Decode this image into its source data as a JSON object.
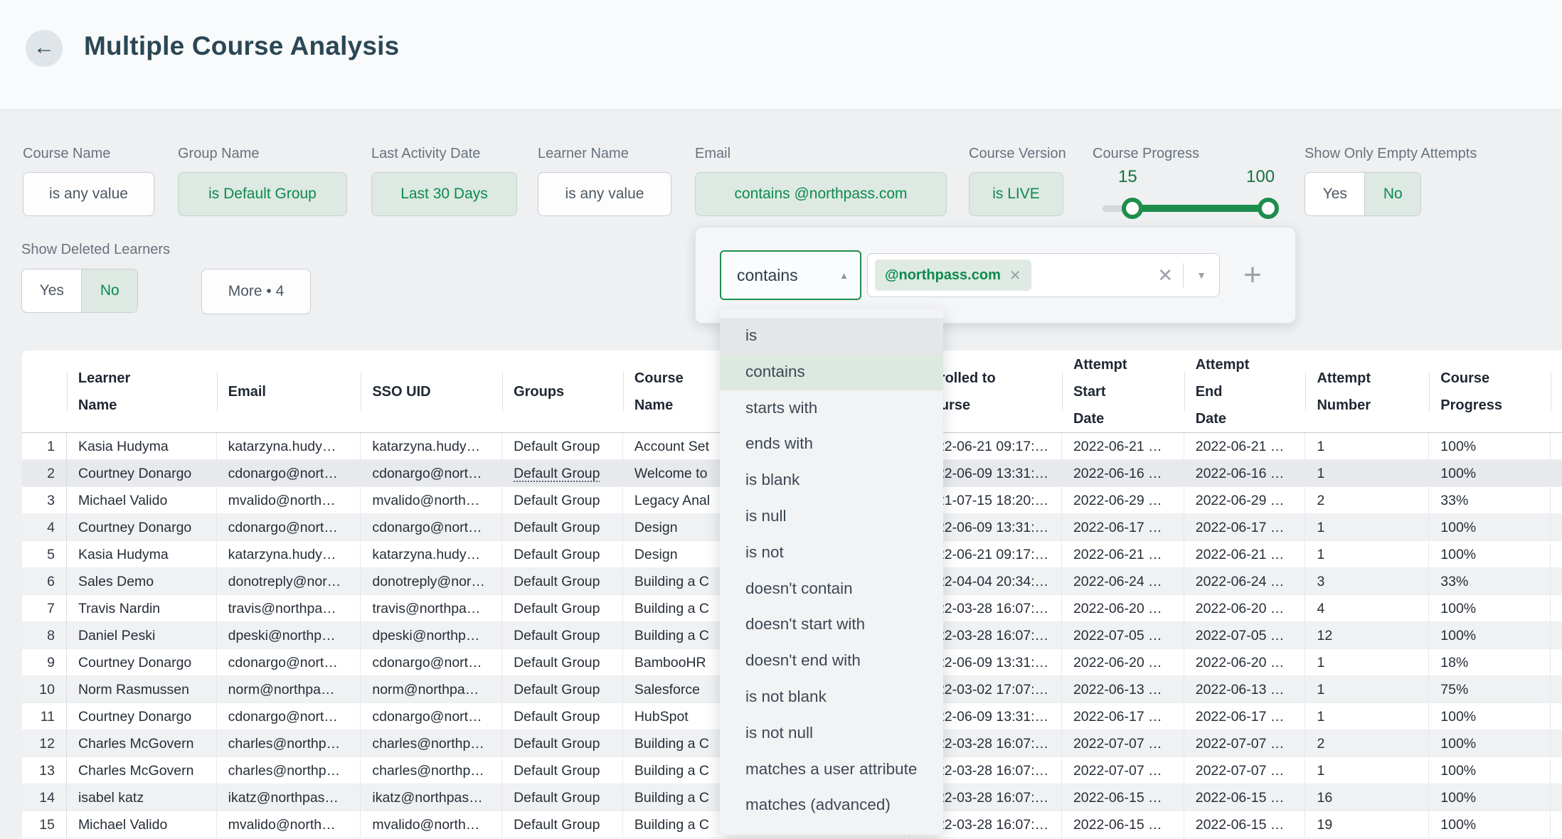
{
  "header": {
    "title": "Multiple Course Analysis",
    "back_icon": "arrow-left"
  },
  "filters": [
    {
      "label": "Course Name",
      "value": "is any value",
      "active": false
    },
    {
      "label": "Group Name",
      "value": "is Default Group",
      "active": true
    },
    {
      "label": "Last Activity Date",
      "value": "Last 30 Days",
      "active": true
    },
    {
      "label": "Learner Name",
      "value": "is any value",
      "active": false
    },
    {
      "label": "Email",
      "value": "contains @northpass.com",
      "active": true
    },
    {
      "label": "Course Version",
      "value": "is LIVE",
      "active": true
    }
  ],
  "progress_filter": {
    "label": "Course Progress",
    "min_label": "15",
    "max_label": "100"
  },
  "toggles": {
    "show_only_empty_attempts": {
      "label": "Show Only Empty Attempts",
      "yes": "Yes",
      "no": "No",
      "selected": "No"
    },
    "show_deleted_learners": {
      "label": "Show Deleted Learners",
      "yes": "Yes",
      "no": "No",
      "selected": "No"
    }
  },
  "more_button": {
    "label": "More • 4"
  },
  "filter_editor": {
    "operator": "contains",
    "token": "@northpass.com",
    "token_remove_icon": "close-icon",
    "clear_icon": "close-icon",
    "expand_icon": "chevron-down-icon",
    "add_icon": "plus-icon"
  },
  "operator_menu": {
    "items": [
      "is",
      "contains",
      "starts with",
      "ends with",
      "is blank",
      "is null",
      "is not",
      "doesn't contain",
      "doesn't start with",
      "doesn't end with",
      "is not blank",
      "is not null",
      "matches a user attribute",
      "matches (advanced)"
    ],
    "selected_item": "contains",
    "hovered_item": "is"
  },
  "table": {
    "columns": [
      {
        "label": ""
      },
      {
        "label": "Learner Name"
      },
      {
        "label": "Email"
      },
      {
        "label": "SSO UID"
      },
      {
        "label": "Groups"
      },
      {
        "label": "Course Name"
      },
      {
        "label": "Enrolled to Course"
      },
      {
        "label": "Attempt Start Date"
      },
      {
        "label": "Attempt End Date"
      },
      {
        "label": "Attempt Number"
      },
      {
        "label": "Course Progress"
      },
      {
        "label": ""
      }
    ],
    "rows": [
      {
        "num": "1",
        "learner": "Kasia Hudyma",
        "email": "katarzyna.hudy…",
        "sso": "katarzyna.hudy…",
        "groups": "Default Group",
        "course": "Account Set",
        "enrolled": "2022-06-21 09:17:…",
        "start": "2022-06-21 …",
        "end": "2022-06-21 …",
        "attempt": "1",
        "progress": "100%",
        "hovered": false
      },
      {
        "num": "2",
        "learner": "Courtney Donargo",
        "email": "cdonargo@nort…",
        "sso": "cdonargo@nort…",
        "groups": "Default Group",
        "course": "Welcome to",
        "enrolled": "2022-06-09 13:31:…",
        "start": "2022-06-16 …",
        "end": "2022-06-16 …",
        "attempt": "1",
        "progress": "100%",
        "hovered": true
      },
      {
        "num": "3",
        "learner": "Michael Valido",
        "email": "mvalido@north…",
        "sso": "mvalido@north…",
        "groups": "Default Group",
        "course": "Legacy Anal",
        "enrolled": "2021-07-15 18:20:…",
        "start": "2022-06-29 …",
        "end": "2022-06-29 …",
        "attempt": "2",
        "progress": "33%",
        "hovered": false
      },
      {
        "num": "4",
        "learner": "Courtney Donargo",
        "email": "cdonargo@nort…",
        "sso": "cdonargo@nort…",
        "groups": "Default Group",
        "course": "Design",
        "enrolled": "2022-06-09 13:31:…",
        "start": "2022-06-17 …",
        "end": "2022-06-17 …",
        "attempt": "1",
        "progress": "100%",
        "hovered": false
      },
      {
        "num": "5",
        "learner": "Kasia Hudyma",
        "email": "katarzyna.hudy…",
        "sso": "katarzyna.hudy…",
        "groups": "Default Group",
        "course": "Design",
        "enrolled": "2022-06-21 09:17:…",
        "start": "2022-06-21 …",
        "end": "2022-06-21 …",
        "attempt": "1",
        "progress": "100%",
        "hovered": false
      },
      {
        "num": "6",
        "learner": "Sales Demo",
        "email": "donotreply@nor…",
        "sso": "donotreply@nor…",
        "groups": "Default Group",
        "course": "Building a C",
        "enrolled": "2022-04-04 20:34:…",
        "start": "2022-06-24 …",
        "end": "2022-06-24 …",
        "attempt": "3",
        "progress": "33%",
        "hovered": false
      },
      {
        "num": "7",
        "learner": "Travis Nardin",
        "email": "travis@northpa…",
        "sso": "travis@northpa…",
        "groups": "Default Group",
        "course": "Building a C",
        "enrolled": "2022-03-28 16:07:…",
        "start": "2022-06-20 …",
        "end": "2022-06-20 …",
        "attempt": "4",
        "progress": "100%",
        "hovered": false
      },
      {
        "num": "8",
        "learner": "Daniel Peski",
        "email": "dpeski@northp…",
        "sso": "dpeski@northp…",
        "groups": "Default Group",
        "course": "Building a C",
        "enrolled": "2022-03-28 16:07:…",
        "start": "2022-07-05 …",
        "end": "2022-07-05 …",
        "attempt": "12",
        "progress": "100%",
        "hovered": false
      },
      {
        "num": "9",
        "learner": "Courtney Donargo",
        "email": "cdonargo@nort…",
        "sso": "cdonargo@nort…",
        "groups": "Default Group",
        "course": "BambooHR",
        "enrolled": "2022-06-09 13:31:…",
        "start": "2022-06-20 …",
        "end": "2022-06-20 …",
        "attempt": "1",
        "progress": "18%",
        "hovered": false
      },
      {
        "num": "10",
        "learner": "Norm Rasmussen",
        "email": "norm@northpa…",
        "sso": "norm@northpa…",
        "groups": "Default Group",
        "course": "Salesforce",
        "enrolled": "2022-03-02 17:07:…",
        "start": "2022-06-13 …",
        "end": "2022-06-13 …",
        "attempt": "1",
        "progress": "75%",
        "hovered": false
      },
      {
        "num": "11",
        "learner": "Courtney Donargo",
        "email": "cdonargo@nort…",
        "sso": "cdonargo@nort…",
        "groups": "Default Group",
        "course": "HubSpot",
        "enrolled": "2022-06-09 13:31:…",
        "start": "2022-06-17 …",
        "end": "2022-06-17 …",
        "attempt": "1",
        "progress": "100%",
        "hovered": false
      },
      {
        "num": "12",
        "learner": "Charles McGovern",
        "email": "charles@northp…",
        "sso": "charles@northp…",
        "groups": "Default Group",
        "course": "Building a C",
        "enrolled": "2022-03-28 16:07:…",
        "start": "2022-07-07 …",
        "end": "2022-07-07 …",
        "attempt": "2",
        "progress": "100%",
        "hovered": false
      },
      {
        "num": "13",
        "learner": "Charles McGovern",
        "email": "charles@northp…",
        "sso": "charles@northp…",
        "groups": "Default Group",
        "course": "Building a C",
        "enrolled": "2022-03-28 16:07:…",
        "start": "2022-07-07 …",
        "end": "2022-07-07 …",
        "attempt": "1",
        "progress": "100%",
        "hovered": false
      },
      {
        "num": "14",
        "learner": "isabel katz",
        "email": "ikatz@northpas…",
        "sso": "ikatz@northpas…",
        "groups": "Default Group",
        "course": "Building a C",
        "enrolled": "2022-03-28 16:07:…",
        "start": "2022-06-15 …",
        "end": "2022-06-15 …",
        "attempt": "16",
        "progress": "100%",
        "hovered": false
      },
      {
        "num": "15",
        "learner": "Michael Valido",
        "email": "mvalido@north…",
        "sso": "mvalido@north…",
        "groups": "Default Group",
        "course": "Building a C",
        "enrolled": "2022-03-28 16:07:…",
        "start": "2022-06-15 …",
        "end": "2022-06-15 …",
        "attempt": "19",
        "progress": "100%",
        "hovered": false
      }
    ]
  },
  "colors": {
    "accent_green_text": "#0d8a4f",
    "accent_green_dark": "#1e8e4d",
    "chip_active_bg": "#dde9e2",
    "menu_selected_bg": "#dce8e0",
    "menu_hover_bg": "#e4e6e9",
    "title_color": "#2b4756",
    "label_gray": "#68737e",
    "page_bg": "#eef0f2",
    "topband_bg": "#f9fafb",
    "row_alt_bg": "#f0f1f3",
    "row_hover_bg": "#e7e9ec"
  }
}
